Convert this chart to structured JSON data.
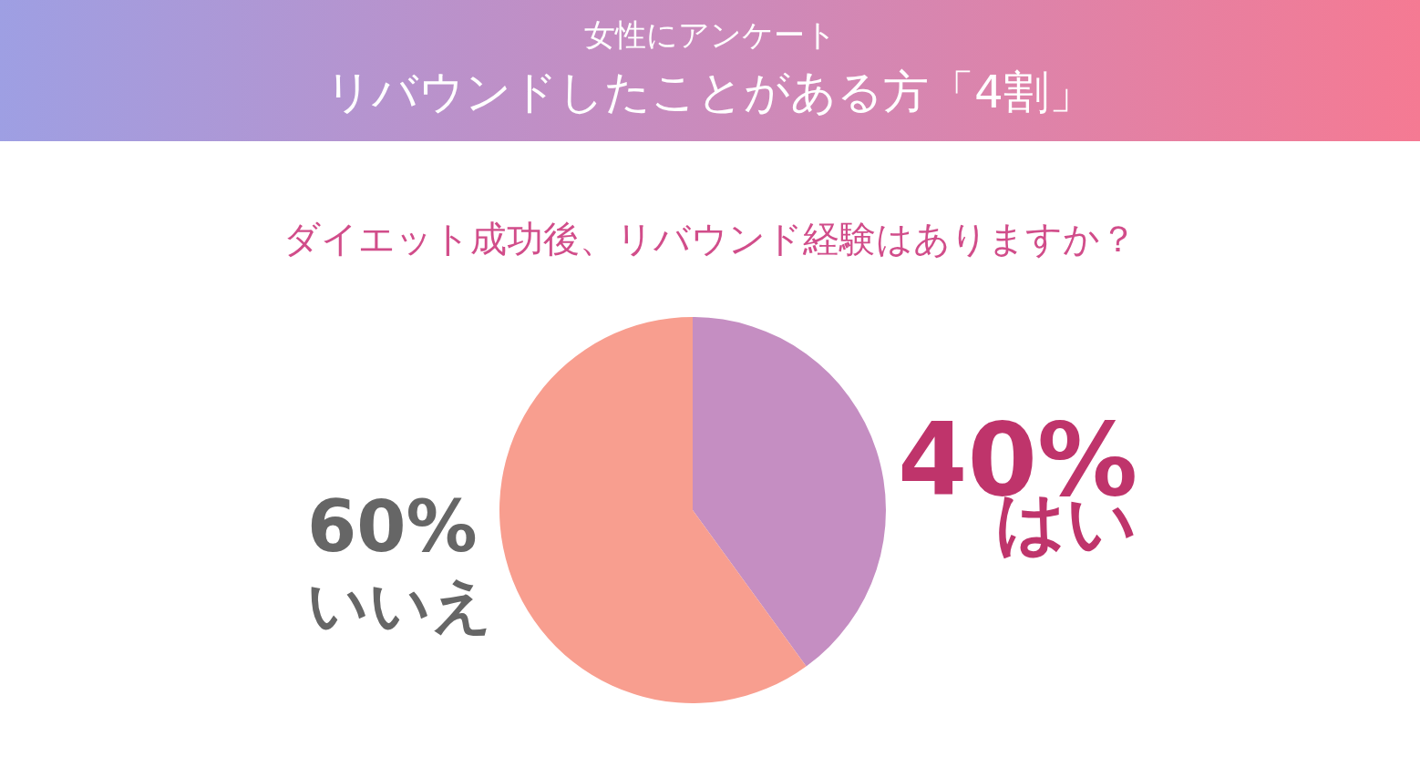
{
  "chart_data": {
    "type": "pie",
    "title": "女性にアンケート",
    "subtitle": "リバウンドしたことがある方「4割」",
    "annotations": [
      "ダイエット成功後、リバウンド経験はありますか？"
    ],
    "categories": [
      "はい",
      "いいえ"
    ],
    "values": [
      40,
      60
    ],
    "colors": [
      "#c58ec2",
      "#f89e8f"
    ],
    "value_labels": [
      "40%",
      "60%"
    ],
    "legend": false
  }
}
